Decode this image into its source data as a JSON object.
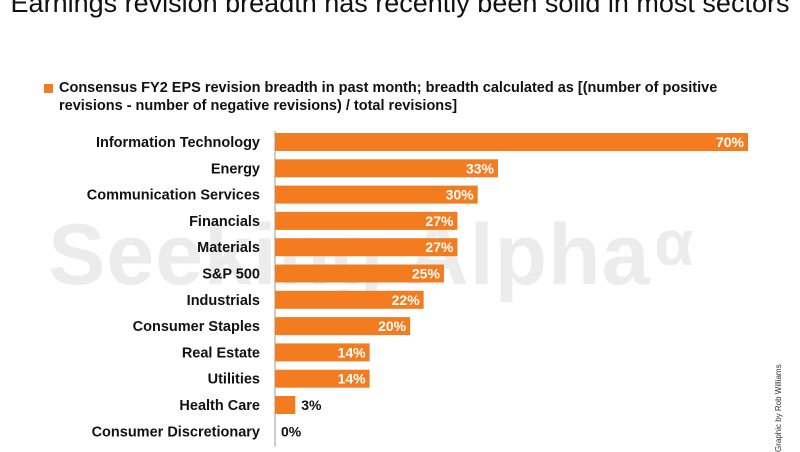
{
  "title": "Earnings revision breadth has recently been solid in most sectors",
  "legend": {
    "text": "Consensus FY2 EPS revision breadth in past month; breadth calculated as [(number of positive revisions - number of negative revisions) / total revisions]",
    "color": "#f47c20"
  },
  "watermark": {
    "text": "Seeking Alpha",
    "symbol": "α"
  },
  "credit": "Graphic by Rob Williams",
  "chart_data": {
    "type": "bar",
    "orientation": "horizontal",
    "categories": [
      "Information Technology",
      "Energy",
      "Communication Services",
      "Financials",
      "Materials",
      "S&P 500",
      "Industrials",
      "Consumer Staples",
      "Real Estate",
      "Utilities",
      "Health Care",
      "Consumer Discretionary"
    ],
    "values": [
      70,
      33,
      30,
      27,
      27,
      25,
      22,
      20,
      14,
      14,
      3,
      0
    ],
    "value_labels": [
      "70%",
      "33%",
      "30%",
      "27%",
      "27%",
      "25%",
      "22%",
      "20%",
      "14%",
      "14%",
      "3%",
      "0%"
    ],
    "bar_color": "#f47c20",
    "label_color": "#ffffff",
    "unit": "%",
    "xlim": [
      0,
      70
    ],
    "grid": false
  }
}
